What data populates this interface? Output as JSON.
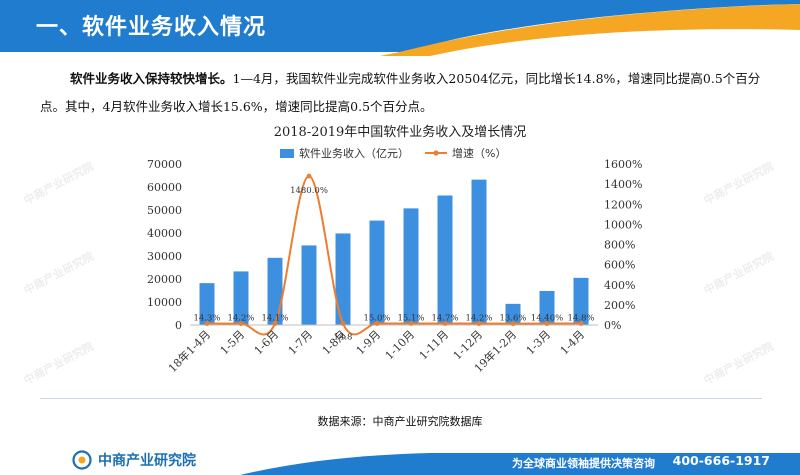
{
  "header": {
    "title": "一、软件业务收入情况"
  },
  "intro": {
    "lead": "软件业务收入保持较快增长。",
    "body": "1—4月，我国软件业完成软件业务收入20504亿元，同比增长14.8%，增速同比提高0.5个百分点。其中，4月软件业务收入增长15.6%，增速同比提高0.5个百分点。"
  },
  "chart_data": {
    "type": "bar",
    "title": "2018-2019年中国软件业务收入及增长情况",
    "categories": [
      "18年1-4月",
      "1-5月",
      "1-6月",
      "1-7月",
      "1-8月",
      "1-9月",
      "1-10月",
      "1-11月",
      "1-12月",
      "19年1-2月",
      "1-3月",
      "1-4月"
    ],
    "series": [
      {
        "name": "软件业务收入（亿元）",
        "type": "bar",
        "axis": "left",
        "color": "#3d8fe0",
        "values": [
          18200,
          23300,
          29200,
          34600,
          39800,
          45400,
          50700,
          56300,
          63200,
          9200,
          14800,
          20500
        ]
      },
      {
        "name": "增速（%）",
        "type": "line",
        "axis": "right",
        "color": "#ed7d31",
        "values": [
          14.3,
          14.2,
          14.1,
          1480.0,
          14.8,
          15.0,
          15.1,
          14.7,
          14.2,
          13.6,
          14.4,
          14.8
        ],
        "labels": [
          "14.3%",
          "14.2%",
          "14.1%",
          "1480.0%",
          "14.8",
          "15.0%",
          "15.1%",
          "14.7%",
          "14.2%",
          "13.6%",
          "14.40%",
          "14.8%"
        ]
      }
    ],
    "y_left": {
      "ylim": [
        0,
        70000
      ],
      "ticks": [
        "0",
        "10000",
        "20000",
        "30000",
        "40000",
        "50000",
        "60000",
        "70000"
      ]
    },
    "y_right": {
      "ylim": [
        0,
        1600
      ],
      "ticks": [
        "0%",
        "200%",
        "400%",
        "600%",
        "800%",
        "1000%",
        "1200%",
        "1400%",
        "1600%"
      ]
    },
    "legend_position": "top",
    "grid": false
  },
  "source": {
    "text": "数据来源：中商产业研究院数据库"
  },
  "footer": {
    "logo": "中商产业研究院",
    "slogan": "为全球商业领袖提供决策咨询",
    "phone": "400-666-1917"
  },
  "watermark": {
    "text": "中商产业研究院"
  },
  "colors": {
    "header_blue": "#1f7ccf",
    "accent_orange": "#f5a623",
    "bar_blue": "#3d8fe0",
    "line_orange": "#ed7d31"
  }
}
